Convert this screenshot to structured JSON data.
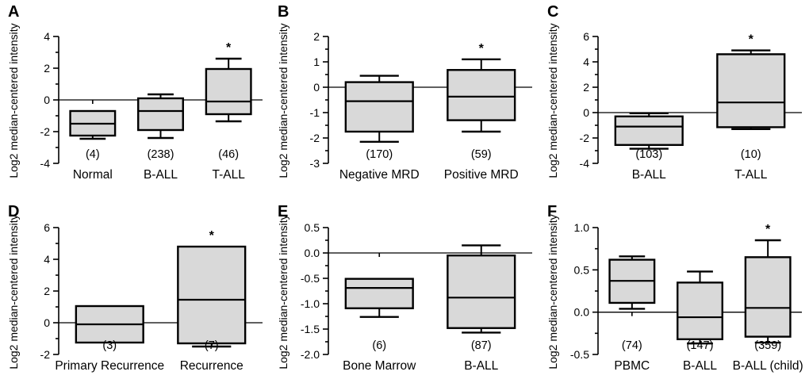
{
  "colors": {
    "line": "#000000",
    "box_fill": "#d9d9d9",
    "background": "#ffffff"
  },
  "chart_data": [
    {
      "type": "box",
      "panel": "A",
      "ylabel": "Log2 median-centered intensity",
      "ylim": [
        -4,
        4
      ],
      "grid": false,
      "yticks": [
        {
          "value": 4,
          "label": "4"
        },
        {
          "value": 2,
          "label": "2"
        },
        {
          "value": 0,
          "label": "0"
        },
        {
          "value": -2,
          "label": "-2"
        },
        {
          "value": -4,
          "label": "-4"
        }
      ],
      "groups": [
        {
          "label": "Normal",
          "n": "(4)",
          "q1": -2.25,
          "median": -1.5,
          "q3": -0.7,
          "whisker_low": -2.45,
          "whisker_high": null,
          "star": false
        },
        {
          "label": "B-ALL",
          "n": "(238)",
          "q1": -1.9,
          "median": -0.7,
          "q3": 0.1,
          "whisker_low": -2.4,
          "whisker_high": 0.35,
          "star": false
        },
        {
          "label": "T-ALL",
          "n": "(46)",
          "q1": -0.9,
          "median": -0.1,
          "q3": 1.95,
          "whisker_low": -1.35,
          "whisker_high": 2.6,
          "star": true
        }
      ]
    },
    {
      "type": "box",
      "panel": "B",
      "ylabel": "Log2 median-centered intensity",
      "ylim": [
        -3,
        2
      ],
      "grid": false,
      "yticks": [
        {
          "value": 2,
          "label": "2"
        },
        {
          "value": 1,
          "label": "1"
        },
        {
          "value": 0,
          "label": "0"
        },
        {
          "value": -1,
          "label": "-1"
        },
        {
          "value": -2,
          "label": "-2"
        },
        {
          "value": -3,
          "label": "-3"
        }
      ],
      "groups": [
        {
          "label": "Negative MRD",
          "n": "(170)",
          "q1": -1.75,
          "median": -0.55,
          "q3": 0.2,
          "whisker_low": -2.15,
          "whisker_high": 0.45,
          "star": false
        },
        {
          "label": "Positive MRD",
          "n": "(59)",
          "q1": -1.3,
          "median": -0.37,
          "q3": 0.68,
          "whisker_low": -1.75,
          "whisker_high": 1.1,
          "star": true
        }
      ]
    },
    {
      "type": "box",
      "panel": "C",
      "ylabel": "Log2 median-centered intensity",
      "ylim": [
        -4,
        6
      ],
      "grid": false,
      "yticks": [
        {
          "value": 6,
          "label": "6"
        },
        {
          "value": 4,
          "label": "4"
        },
        {
          "value": 2,
          "label": "2"
        },
        {
          "value": 0,
          "label": "0"
        },
        {
          "value": -2,
          "label": "-2"
        },
        {
          "value": -4,
          "label": "-4"
        }
      ],
      "groups": [
        {
          "label": "B-ALL",
          "n": "(103)",
          "q1": -2.55,
          "median": -1.1,
          "q3": -0.3,
          "whisker_low": -2.85,
          "whisker_high": -0.05,
          "star": false
        },
        {
          "label": "T-ALL",
          "n": "(10)",
          "q1": -1.15,
          "median": 0.8,
          "q3": 4.6,
          "whisker_low": -1.3,
          "whisker_high": 4.9,
          "star": true
        }
      ]
    },
    {
      "type": "box",
      "panel": "D",
      "ylabel": "Log2 median-centered intensity",
      "ylim": [
        -2,
        6
      ],
      "grid": false,
      "yticks": [
        {
          "value": 6,
          "label": "6"
        },
        {
          "value": 4,
          "label": "4"
        },
        {
          "value": 2,
          "label": "2"
        },
        {
          "value": 0,
          "label": "0"
        },
        {
          "value": -2,
          "label": "-2"
        }
      ],
      "groups": [
        {
          "label": "Primary Recurrence",
          "n": "(3)",
          "q1": -1.25,
          "median": -0.1,
          "q3": 1.05,
          "whisker_low": null,
          "whisker_high": null,
          "star": false
        },
        {
          "label": "Recurrence",
          "n": "(7)",
          "q1": -1.3,
          "median": 1.45,
          "q3": 4.8,
          "whisker_low": -1.5,
          "whisker_high": null,
          "star": true
        }
      ]
    },
    {
      "type": "box",
      "panel": "E",
      "ylabel": "Log2 median-centered intensity",
      "ylim": [
        -2,
        0.5
      ],
      "grid": false,
      "yticks": [
        {
          "value": 0.5,
          "label": "0.5"
        },
        {
          "value": 0,
          "label": "0.0"
        },
        {
          "value": -0.5,
          "label": "-0.5"
        },
        {
          "value": -1,
          "label": "-1.0"
        },
        {
          "value": -1.5,
          "label": "-1.5"
        },
        {
          "value": -2,
          "label": "-2.0"
        }
      ],
      "groups": [
        {
          "label": "Bone Marrow",
          "n": "(6)",
          "q1": -1.09,
          "median": -0.69,
          "q3": -0.51,
          "whisker_low": -1.26,
          "whisker_high": null,
          "star": false
        },
        {
          "label": "B-ALL",
          "n": "(87)",
          "q1": -1.48,
          "median": -0.88,
          "q3": -0.05,
          "whisker_low": -1.57,
          "whisker_high": 0.15,
          "star": false
        }
      ]
    },
    {
      "type": "box",
      "panel": "F",
      "ylabel": "Log2 median-centered intensity",
      "ylim": [
        -0.5,
        1
      ],
      "grid": false,
      "yticks": [
        {
          "value": 1,
          "label": "1.0"
        },
        {
          "value": 0.5,
          "label": "0.5"
        },
        {
          "value": 0,
          "label": "0.0"
        },
        {
          "value": -0.5,
          "label": "-0.5"
        }
      ],
      "groups": [
        {
          "label": "PBMC",
          "n": "(74)",
          "q1": 0.11,
          "median": 0.37,
          "q3": 0.62,
          "whisker_low": 0.04,
          "whisker_high": 0.66,
          "star": false
        },
        {
          "label": "B-ALL",
          "n": "(147)",
          "q1": -0.32,
          "median": -0.06,
          "q3": 0.35,
          "whisker_low": -0.37,
          "whisker_high": 0.48,
          "star": false
        },
        {
          "label": "B-ALL (child)",
          "n": "(359)",
          "q1": -0.29,
          "median": 0.05,
          "q3": 0.65,
          "whisker_low": -0.36,
          "whisker_high": 0.85,
          "star": true
        }
      ]
    }
  ]
}
